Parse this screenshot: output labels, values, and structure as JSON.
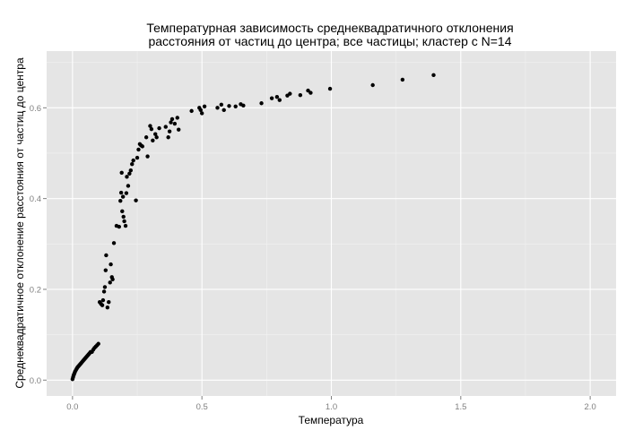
{
  "chart_data": {
    "type": "scatter",
    "title_line1": "Температурная зависимость среднеквадратичного отклонения",
    "title_line2": "расстояния от частиц до центра; все частицы; кластер с N=14",
    "xlabel": "Температура",
    "ylabel": "Среднеквадратичное отклонение расстояния от частиц до центра",
    "xlim": [
      -0.1,
      2.1
    ],
    "ylim": [
      -0.035,
      0.725
    ],
    "x_ticks": [
      0.0,
      0.5,
      1.0,
      1.5,
      2.0
    ],
    "x_tick_labels": [
      "0.0",
      "0.5",
      "1.0",
      "1.5",
      "2.0"
    ],
    "y_ticks": [
      0.0,
      0.2,
      0.4,
      0.6
    ],
    "y_tick_labels": [
      "0.0",
      "0.2",
      "0.4",
      "0.6"
    ],
    "grid": true,
    "colors": {
      "panel": "#e5e5e5",
      "grid_major": "#ffffff",
      "grid_minor": "#f2f2f2",
      "point": "#000000"
    },
    "series": [
      {
        "points": [
          [
            0.0,
            0.002
          ],
          [
            0.002,
            0.006
          ],
          [
            0.004,
            0.01
          ],
          [
            0.006,
            0.013
          ],
          [
            0.008,
            0.016
          ],
          [
            0.01,
            0.019
          ],
          [
            0.013,
            0.022
          ],
          [
            0.016,
            0.025
          ],
          [
            0.019,
            0.028
          ],
          [
            0.022,
            0.03
          ],
          [
            0.025,
            0.032
          ],
          [
            0.028,
            0.034
          ],
          [
            0.031,
            0.036
          ],
          [
            0.034,
            0.038
          ],
          [
            0.037,
            0.04
          ],
          [
            0.04,
            0.042
          ],
          [
            0.043,
            0.044
          ],
          [
            0.046,
            0.046
          ],
          [
            0.049,
            0.048
          ],
          [
            0.052,
            0.05
          ],
          [
            0.055,
            0.052
          ],
          [
            0.058,
            0.054
          ],
          [
            0.061,
            0.056
          ],
          [
            0.064,
            0.058
          ],
          [
            0.067,
            0.06
          ],
          [
            0.07,
            0.062
          ],
          [
            0.075,
            0.062
          ],
          [
            0.08,
            0.067
          ],
          [
            0.085,
            0.071
          ],
          [
            0.09,
            0.074
          ],
          [
            0.095,
            0.077
          ],
          [
            0.1,
            0.08
          ],
          [
            0.105,
            0.172
          ],
          [
            0.11,
            0.168
          ],
          [
            0.115,
            0.165
          ],
          [
            0.118,
            0.176
          ],
          [
            0.122,
            0.195
          ],
          [
            0.125,
            0.205
          ],
          [
            0.128,
            0.242
          ],
          [
            0.13,
            0.275
          ],
          [
            0.135,
            0.16
          ],
          [
            0.14,
            0.172
          ],
          [
            0.145,
            0.215
          ],
          [
            0.148,
            0.255
          ],
          [
            0.152,
            0.227
          ],
          [
            0.155,
            0.222
          ],
          [
            0.16,
            0.302
          ],
          [
            0.17,
            0.34
          ],
          [
            0.18,
            0.338
          ],
          [
            0.185,
            0.395
          ],
          [
            0.188,
            0.413
          ],
          [
            0.19,
            0.457
          ],
          [
            0.192,
            0.372
          ],
          [
            0.195,
            0.404
          ],
          [
            0.197,
            0.36
          ],
          [
            0.2,
            0.35
          ],
          [
            0.205,
            0.34
          ],
          [
            0.208,
            0.412
          ],
          [
            0.21,
            0.448
          ],
          [
            0.215,
            0.428
          ],
          [
            0.22,
            0.455
          ],
          [
            0.225,
            0.462
          ],
          [
            0.23,
            0.476
          ],
          [
            0.235,
            0.484
          ],
          [
            0.245,
            0.396
          ],
          [
            0.25,
            0.49
          ],
          [
            0.255,
            0.508
          ],
          [
            0.26,
            0.52
          ],
          [
            0.265,
            0.517
          ],
          [
            0.27,
            0.515
          ],
          [
            0.285,
            0.535
          ],
          [
            0.29,
            0.493
          ],
          [
            0.3,
            0.56
          ],
          [
            0.305,
            0.553
          ],
          [
            0.31,
            0.528
          ],
          [
            0.32,
            0.542
          ],
          [
            0.325,
            0.535
          ],
          [
            0.335,
            0.555
          ],
          [
            0.36,
            0.558
          ],
          [
            0.37,
            0.535
          ],
          [
            0.375,
            0.548
          ],
          [
            0.38,
            0.568
          ],
          [
            0.385,
            0.575
          ],
          [
            0.395,
            0.565
          ],
          [
            0.405,
            0.578
          ],
          [
            0.41,
            0.552
          ],
          [
            0.46,
            0.593
          ],
          [
            0.49,
            0.6
          ],
          [
            0.495,
            0.595
          ],
          [
            0.5,
            0.588
          ],
          [
            0.51,
            0.603
          ],
          [
            0.56,
            0.6
          ],
          [
            0.575,
            0.607
          ],
          [
            0.585,
            0.595
          ],
          [
            0.605,
            0.604
          ],
          [
            0.63,
            0.603
          ],
          [
            0.65,
            0.608
          ],
          [
            0.66,
            0.605
          ],
          [
            0.73,
            0.61
          ],
          [
            0.77,
            0.621
          ],
          [
            0.79,
            0.624
          ],
          [
            0.8,
            0.617
          ],
          [
            0.83,
            0.627
          ],
          [
            0.84,
            0.631
          ],
          [
            0.88,
            0.628
          ],
          [
            0.91,
            0.638
          ],
          [
            0.92,
            0.633
          ],
          [
            0.995,
            0.642
          ],
          [
            1.16,
            0.65
          ],
          [
            1.275,
            0.662
          ],
          [
            1.395,
            0.672
          ]
        ]
      }
    ]
  }
}
